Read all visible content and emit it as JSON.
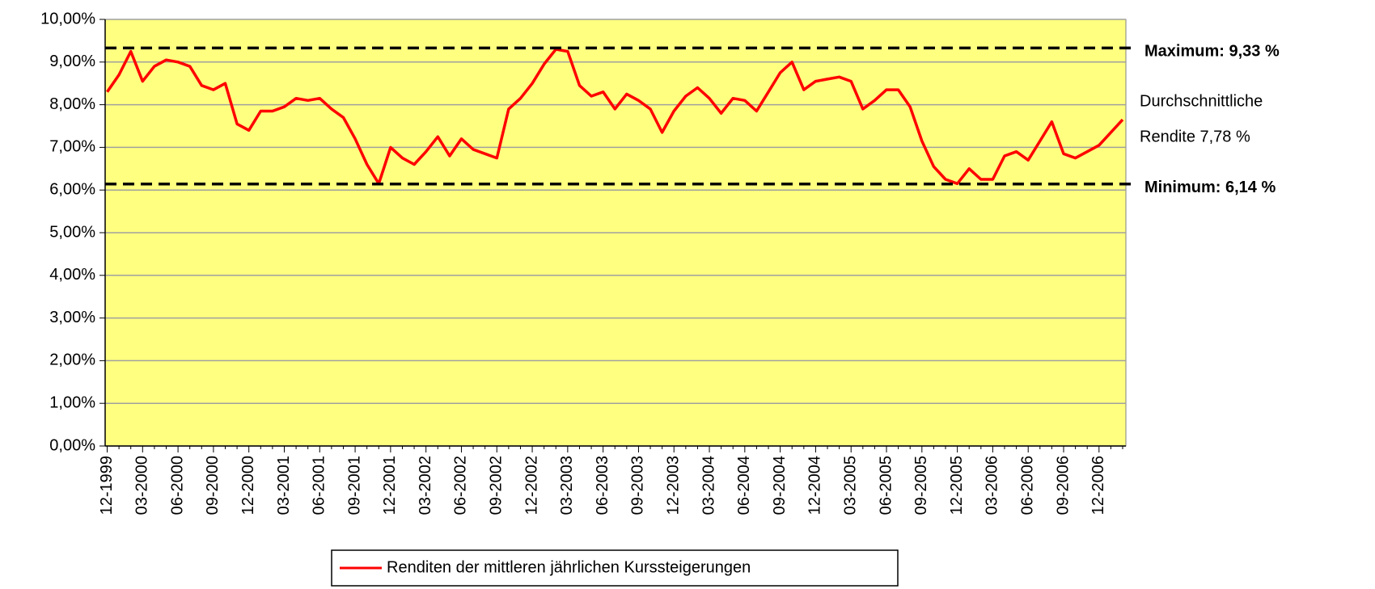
{
  "chart_data": {
    "type": "line",
    "categories": [
      "12-1999",
      null,
      null,
      "03-2000",
      null,
      null,
      "06-2000",
      null,
      null,
      "09-2000",
      null,
      null,
      "12-2000",
      null,
      null,
      "03-2001",
      null,
      null,
      "06-2001",
      null,
      null,
      "09-2001",
      null,
      null,
      "12-2001",
      null,
      null,
      "03-2002",
      null,
      null,
      "06-2002",
      null,
      null,
      "09-2002",
      null,
      null,
      "12-2002",
      null,
      null,
      "03-2003",
      null,
      null,
      "06-2003",
      null,
      null,
      "09-2003",
      null,
      null,
      "12-2003",
      null,
      null,
      "03-2004",
      null,
      null,
      "06-2004",
      null,
      null,
      "09-2004",
      null,
      null,
      "12-2004",
      null,
      null,
      "03-2005",
      null,
      null,
      "06-2005",
      null,
      null,
      "09-2005",
      null,
      null,
      "12-2005",
      null,
      null,
      "03-2006",
      null,
      null,
      "06-2006",
      null,
      null,
      "09-2006",
      null,
      null,
      "12-2006",
      null,
      null
    ],
    "series": [
      {
        "name": "Renditen der mittleren jährlichen Kurssteigerungen",
        "color": "#ff0000",
        "values": [
          8.3,
          8.7,
          9.25,
          8.55,
          8.9,
          9.05,
          9.0,
          8.9,
          8.45,
          8.35,
          8.5,
          7.55,
          7.4,
          7.85,
          7.85,
          7.95,
          8.15,
          8.1,
          8.15,
          7.9,
          7.7,
          7.2,
          6.6,
          6.15,
          7.0,
          6.75,
          6.6,
          6.9,
          7.25,
          6.8,
          7.2,
          6.95,
          6.85,
          6.75,
          7.9,
          8.15,
          8.5,
          8.95,
          9.3,
          9.25,
          8.45,
          8.2,
          8.3,
          7.9,
          8.25,
          8.1,
          7.9,
          7.35,
          7.85,
          8.2,
          8.4,
          8.15,
          7.8,
          8.15,
          8.1,
          7.85,
          8.3,
          8.75,
          9.0,
          8.35,
          8.55,
          8.6,
          8.65,
          8.55,
          7.9,
          8.1,
          8.35,
          8.35,
          7.95,
          7.15,
          6.55,
          6.25,
          6.15,
          6.5,
          6.25,
          6.25,
          6.8,
          6.9,
          6.7,
          7.15,
          7.6,
          6.85,
          6.75,
          6.9,
          7.05,
          7.35,
          7.65
        ]
      }
    ],
    "ylim": [
      0,
      10
    ],
    "yticks": [
      {
        "value": 0,
        "label": "0,00%"
      },
      {
        "value": 1,
        "label": "1,00%"
      },
      {
        "value": 2,
        "label": "2,00%"
      },
      {
        "value": 3,
        "label": "3,00%"
      },
      {
        "value": 4,
        "label": "4,00%"
      },
      {
        "value": 5,
        "label": "5,00%"
      },
      {
        "value": 6,
        "label": "6,00%"
      },
      {
        "value": 7,
        "label": "7,00%"
      },
      {
        "value": 8,
        "label": "8,00%"
      },
      {
        "value": 9,
        "label": "9,00%"
      },
      {
        "value": 10,
        "label": "10,00%"
      }
    ],
    "grid": true,
    "background": "#ffff80",
    "reference_lines": [
      {
        "value": 9.33,
        "label": "Maximum: 9,33 %"
      },
      {
        "value": 6.14,
        "label": "Minimum: 6,14 %"
      }
    ],
    "annotation": [
      "Durchschnittliche",
      "Rendite 7,78 %"
    ],
    "annotation_color": "#ff0000",
    "legend": "bottom"
  }
}
